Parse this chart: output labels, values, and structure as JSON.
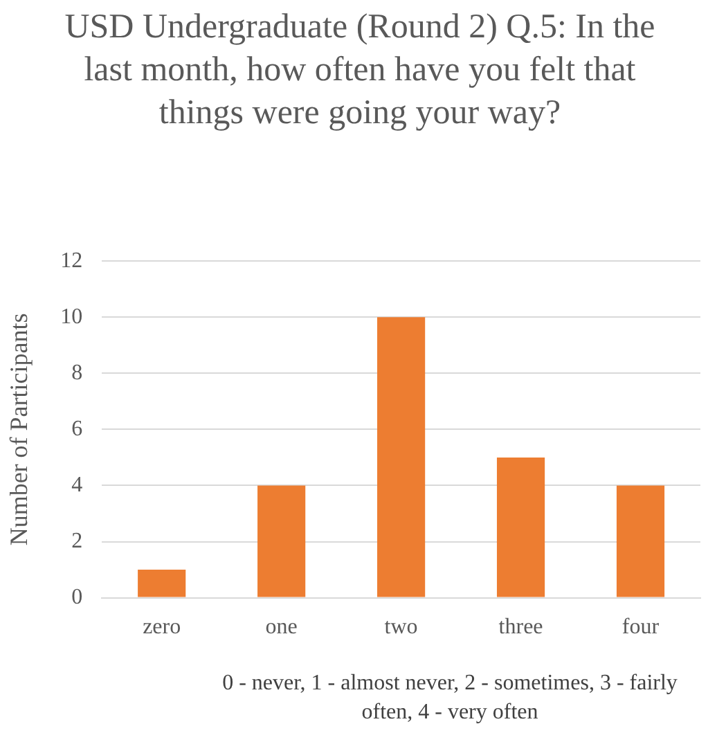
{
  "chart_data": {
    "type": "bar",
    "title": "USD Undergraduate (Round 2) Q.5: In the last month, how often have you felt that things were going your way?",
    "xlabel": "0 - never, 1 - almost never, 2 - sometimes, 3 - fairly often, 4 - very often",
    "ylabel": "Number of Participants",
    "categories": [
      "zero",
      "one",
      "two",
      "three",
      "four"
    ],
    "values": [
      1,
      4,
      10,
      5,
      4
    ],
    "color": "#ed7d31",
    "ylim": [
      0,
      12
    ],
    "yticks": [
      0,
      2,
      4,
      6,
      8,
      10,
      12
    ],
    "grid": "y",
    "legend": false
  }
}
